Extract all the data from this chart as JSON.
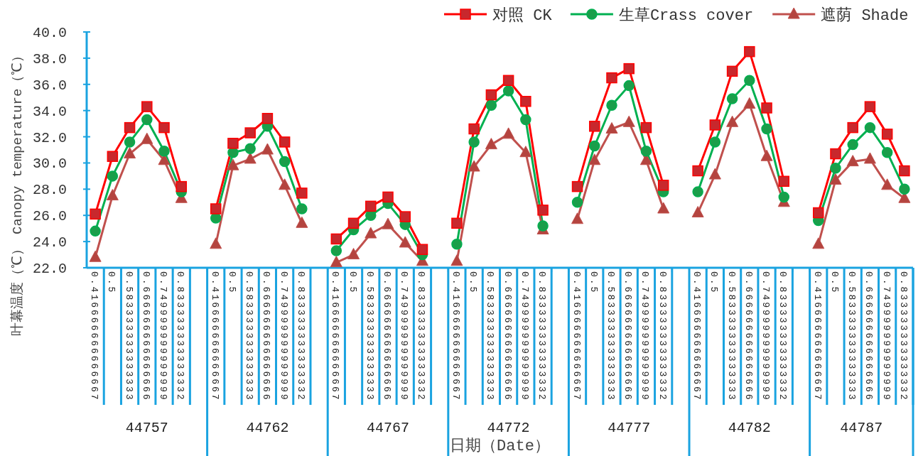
{
  "chart_data": {
    "type": "line",
    "ylabel": "叶幕温度（℃） Canopy temperature（℃）",
    "xlabel": "日期（Date）",
    "categories": [
      "0.416666666666667",
      "0.5",
      "0.583333333333333",
      "0.666666666666666",
      "0.749999999999999",
      "0.833333333333332",
      null,
      "0.416666666666667",
      "0.5",
      "0.583333333333333",
      "0.666666666666666",
      "0.749999999999999",
      "0.833333333333332",
      null,
      "0.416666666666667",
      "0.5",
      "0.583333333333333",
      "0.666666666666666",
      "0.749999999999999",
      "0.833333333333332",
      null,
      "0.416666666666667",
      "0.5",
      "0.583333333333333",
      "0.666666666666666",
      "0.749999999999999",
      "0.833333333333332",
      null,
      "0.416666666666667",
      "0.5",
      "0.583333333333333",
      "0.666666666666666",
      "0.749999999999999",
      "0.833333333333332",
      null,
      "0.416666666666667",
      "0.5",
      "0.583333333333333",
      "0.666666666666666",
      "0.749999999999999",
      "0.833333333333332",
      null,
      "0.416666666666667",
      "0.5",
      "0.583333333333333",
      "0.666666666666666",
      "0.749999999999999",
      "0.833333333333332"
    ],
    "annotations": [
      "44757",
      "44762",
      "44767",
      "44772",
      "44777",
      "44782",
      "44787"
    ],
    "series": [
      {
        "name": "对照 CK",
        "color": "#ff0000",
        "marker": "square",
        "values": [
          26.1,
          30.5,
          32.7,
          34.3,
          32.7,
          28.2,
          null,
          26.5,
          31.5,
          32.3,
          33.4,
          31.6,
          27.7,
          null,
          24.2,
          25.4,
          26.7,
          27.4,
          25.9,
          23.4,
          null,
          25.4,
          32.6,
          35.2,
          36.3,
          34.7,
          26.4,
          null,
          28.2,
          32.8,
          36.5,
          37.2,
          32.7,
          28.3,
          null,
          29.4,
          32.9,
          37.0,
          38.5,
          34.2,
          28.6,
          null,
          26.2,
          30.7,
          32.7,
          34.3,
          32.2,
          29.4
        ]
      },
      {
        "name": "生草Crass cover",
        "color": "#00b050",
        "marker": "circle",
        "values": [
          24.8,
          29.0,
          31.6,
          33.3,
          30.9,
          27.8,
          null,
          25.8,
          30.8,
          31.1,
          32.8,
          30.1,
          26.5,
          null,
          23.3,
          24.9,
          26.0,
          26.9,
          25.3,
          23.0,
          null,
          23.8,
          31.6,
          34.4,
          35.5,
          33.3,
          25.2,
          null,
          27.0,
          31.3,
          34.4,
          35.9,
          30.9,
          27.8,
          null,
          27.8,
          31.6,
          34.9,
          36.3,
          32.6,
          27.4,
          null,
          25.6,
          29.6,
          31.4,
          32.7,
          30.8,
          28.0
        ]
      },
      {
        "name": "遮荫 Shade",
        "color": "#c0504d",
        "marker": "triangle",
        "values": [
          22.8,
          27.5,
          30.7,
          31.8,
          30.2,
          27.3,
          null,
          23.8,
          29.8,
          30.3,
          31.0,
          28.3,
          25.4,
          null,
          22.4,
          23.0,
          24.6,
          25.3,
          23.9,
          22.5,
          null,
          22.5,
          29.7,
          31.4,
          32.2,
          30.8,
          24.9,
          null,
          25.7,
          30.2,
          32.6,
          33.1,
          30.2,
          26.5,
          null,
          26.2,
          29.1,
          33.1,
          34.5,
          30.5,
          27.0,
          null,
          23.8,
          28.7,
          30.1,
          30.3,
          28.3,
          27.3
        ]
      }
    ],
    "ylim": [
      22,
      40
    ],
    "yticks": [
      {
        "value": 22,
        "label": "22.0"
      },
      {
        "value": 24,
        "label": "24.0"
      },
      {
        "value": 26,
        "label": "26.0"
      },
      {
        "value": 28,
        "label": "28.0"
      },
      {
        "value": 30,
        "label": "30.0"
      },
      {
        "value": 32,
        "label": "32.0"
      },
      {
        "value": 34,
        "label": "34.0"
      },
      {
        "value": 36,
        "label": "36.0"
      },
      {
        "value": 38,
        "label": "38.0"
      },
      {
        "value": 40,
        "label": "40.0"
      }
    ],
    "legend": "top right",
    "line_style": "solid"
  }
}
